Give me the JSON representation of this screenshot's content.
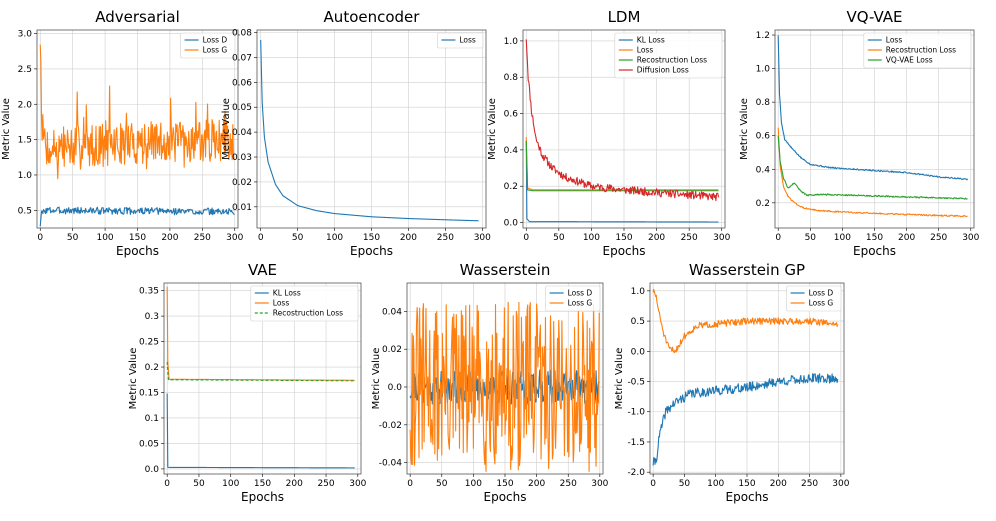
{
  "colors": {
    "c_blue": "#1f77b4",
    "c_orange": "#ff7f0e",
    "c_green": "#2ca02c",
    "c_red": "#d62728",
    "grid": "#cfcfcf",
    "frame": "#555555"
  },
  "chart_data": [
    {
      "type": "line",
      "title": "Adversarial",
      "xlabel": "Epochs",
      "ylabel": "Metric Value",
      "xlim": [
        -5,
        305
      ],
      "ylim": [
        0.25,
        3.05
      ],
      "xticks": [
        0,
        50,
        100,
        150,
        200,
        250,
        300
      ],
      "yticks": [
        0.5,
        1.0,
        1.5,
        2.0,
        2.5,
        3.0
      ],
      "grid": true,
      "legend": "top-right",
      "series": [
        {
          "name": "Loss D",
          "color": "c_blue",
          "gen": "noisy",
          "p": {
            "points": [
              [
                0,
                0.3
              ],
              [
                2,
                0.45
              ],
              [
                8,
                0.5
              ],
              [
                300,
                0.48
              ]
            ],
            "amp": 0.05,
            "n": 300,
            "seed": 3
          }
        },
        {
          "name": "Loss G",
          "color": "c_orange",
          "gen": "noisy",
          "p": {
            "points": [
              [
                0,
                3.0
              ],
              [
                3,
                1.6
              ],
              [
                10,
                1.4
              ],
              [
                300,
                1.5
              ]
            ],
            "amp": 0.3,
            "spikes": 0.09,
            "spikeAmp": 0.55,
            "n": 300,
            "seed": 7
          }
        }
      ]
    },
    {
      "type": "line",
      "title": "Autoencoder",
      "xlabel": "Epochs",
      "ylabel": "Metric Value",
      "xlim": [
        -5,
        305
      ],
      "ylim": [
        0.0015,
        0.081
      ],
      "xticks": [
        0,
        50,
        100,
        150,
        200,
        250,
        300
      ],
      "yticks": [
        0.01,
        0.02,
        0.03,
        0.04,
        0.05,
        0.06,
        0.07,
        0.08
      ],
      "grid": true,
      "legend": "top-right",
      "series": [
        {
          "name": "Loss",
          "color": "c_blue",
          "gen": "smooth",
          "p": {
            "points": [
              [
                0,
                0.077
              ],
              [
                2,
                0.052
              ],
              [
                5,
                0.038
              ],
              [
                10,
                0.028
              ],
              [
                20,
                0.019
              ],
              [
                30,
                0.0145
              ],
              [
                50,
                0.0105
              ],
              [
                75,
                0.0085
              ],
              [
                100,
                0.0073
              ],
              [
                150,
                0.006
              ],
              [
                200,
                0.0053
              ],
              [
                250,
                0.0048
              ],
              [
                295,
                0.0044
              ]
            ]
          }
        }
      ]
    },
    {
      "type": "line",
      "title": "LDM",
      "xlabel": "Epochs",
      "ylabel": "Metric Value",
      "xlim": [
        -5,
        305
      ],
      "ylim": [
        -0.03,
        1.06
      ],
      "xticks": [
        0,
        50,
        100,
        150,
        200,
        250,
        300
      ],
      "yticks": [
        0.0,
        0.2,
        0.4,
        0.6,
        0.8,
        1.0
      ],
      "grid": true,
      "legend": "top-right",
      "series": [
        {
          "name": "KL Loss",
          "color": "c_blue",
          "gen": "smooth",
          "p": {
            "points": [
              [
                0,
                0.45
              ],
              [
                1,
                0.02
              ],
              [
                5,
                0.005
              ],
              [
                295,
                0.003
              ]
            ]
          }
        },
        {
          "name": "Loss",
          "color": "c_orange",
          "gen": "smooth",
          "p": {
            "points": [
              [
                0,
                0.47
              ],
              [
                2,
                0.19
              ],
              [
                10,
                0.18
              ],
              [
                295,
                0.18
              ]
            ]
          }
        },
        {
          "name": "Recostruction Loss",
          "color": "c_green",
          "gen": "smooth",
          "p": {
            "points": [
              [
                0,
                0.45
              ],
              [
                2,
                0.18
              ],
              [
                10,
                0.175
              ],
              [
                295,
                0.175
              ]
            ]
          }
        },
        {
          "name": "Diffusion Loss",
          "color": "c_red",
          "gen": "noisy",
          "p": {
            "points": [
              [
                0,
                1.02
              ],
              [
                3,
                0.8
              ],
              [
                8,
                0.62
              ],
              [
                15,
                0.46
              ],
              [
                25,
                0.37
              ],
              [
                40,
                0.3
              ],
              [
                60,
                0.25
              ],
              [
                100,
                0.2
              ],
              [
                150,
                0.18
              ],
              [
                200,
                0.165
              ],
              [
                295,
                0.14
              ]
            ],
            "amp": 0.022,
            "n": 296,
            "seed": 11
          }
        }
      ]
    },
    {
      "type": "line",
      "title": "VQ-VAE",
      "xlabel": "Epochs",
      "ylabel": "Metric Value",
      "xlim": [
        -5,
        305
      ],
      "ylim": [
        0.05,
        1.23
      ],
      "xticks": [
        0,
        50,
        100,
        150,
        200,
        250,
        300
      ],
      "yticks": [
        0.2,
        0.4,
        0.6,
        0.8,
        1.0,
        1.2
      ],
      "grid": true,
      "legend": "top-right",
      "series": [
        {
          "name": "Loss",
          "color": "c_blue",
          "gen": "noisy",
          "p": {
            "points": [
              [
                0,
                1.2
              ],
              [
                2,
                0.85
              ],
              [
                5,
                0.68
              ],
              [
                10,
                0.58
              ],
              [
                20,
                0.53
              ],
              [
                35,
                0.47
              ],
              [
                50,
                0.43
              ],
              [
                80,
                0.41
              ],
              [
                120,
                0.4
              ],
              [
                200,
                0.38
              ],
              [
                250,
                0.355
              ],
              [
                295,
                0.34
              ]
            ],
            "amp": 0.004,
            "n": 296,
            "seed": 5
          }
        },
        {
          "name": "Recostruction Loss",
          "color": "c_orange",
          "gen": "noisy",
          "p": {
            "points": [
              [
                0,
                0.65
              ],
              [
                3,
                0.42
              ],
              [
                8,
                0.3
              ],
              [
                15,
                0.24
              ],
              [
                25,
                0.2
              ],
              [
                40,
                0.17
              ],
              [
                60,
                0.155
              ],
              [
                100,
                0.145
              ],
              [
                200,
                0.13
              ],
              [
                295,
                0.12
              ]
            ],
            "amp": 0.004,
            "n": 296,
            "seed": 8
          }
        },
        {
          "name": "VQ-VAE Loss",
          "color": "c_green",
          "gen": "noisy",
          "p": {
            "points": [
              [
                0,
                0.6
              ],
              [
                3,
                0.45
              ],
              [
                8,
                0.35
              ],
              [
                15,
                0.29
              ],
              [
                20,
                0.3
              ],
              [
                25,
                0.32
              ],
              [
                35,
                0.27
              ],
              [
                45,
                0.245
              ],
              [
                70,
                0.25
              ],
              [
                120,
                0.245
              ],
              [
                200,
                0.235
              ],
              [
                295,
                0.225
              ]
            ],
            "amp": 0.004,
            "n": 296,
            "seed": 9
          }
        }
      ]
    },
    {
      "type": "line",
      "title": "VAE",
      "xlabel": "Epochs",
      "ylabel": "Metric Value",
      "xlim": [
        -5,
        305
      ],
      "ylim": [
        -0.01,
        0.365
      ],
      "xticks": [
        0,
        50,
        100,
        150,
        200,
        250,
        300
      ],
      "yticks": [
        0.0,
        0.05,
        0.1,
        0.15,
        0.2,
        0.25,
        0.3,
        0.35
      ],
      "grid": true,
      "legend": "top-right",
      "series": [
        {
          "name": "KL Loss",
          "color": "c_blue",
          "gen": "smooth",
          "p": {
            "points": [
              [
                0,
                0.148
              ],
              [
                1,
                0.003
              ],
              [
                295,
                0.002
              ]
            ]
          }
        },
        {
          "name": "Loss",
          "color": "c_orange",
          "gen": "smooth",
          "p": {
            "points": [
              [
                0,
                0.358
              ],
              [
                1,
                0.21
              ],
              [
                3,
                0.176
              ],
              [
                295,
                0.174
              ]
            ]
          }
        },
        {
          "name": "Recostruction Loss",
          "color": "c_green",
          "gen": "smooth",
          "dash": true,
          "p": {
            "points": [
              [
                0,
                0.21
              ],
              [
                2,
                0.175
              ],
              [
                295,
                0.173
              ]
            ]
          }
        }
      ]
    },
    {
      "type": "line",
      "title": "Wasserstein",
      "xlabel": "Epochs",
      "ylabel": "Metric Value",
      "xlim": [
        -5,
        305
      ],
      "ylim": [
        -0.046,
        0.055
      ],
      "xticks": [
        0,
        50,
        100,
        150,
        200,
        250,
        300
      ],
      "yticks": [
        -0.04,
        -0.02,
        0.0,
        0.02,
        0.04
      ],
      "grid": true,
      "legend": "top-right",
      "series": [
        {
          "name": "Loss D",
          "color": "c_blue",
          "gen": "noisy",
          "p": {
            "points": [
              [
                0,
                0.0
              ],
              [
                300,
                0.0
              ]
            ],
            "amp": 0.009,
            "n": 300,
            "seed": 21
          }
        },
        {
          "name": "Loss G",
          "color": "c_orange",
          "gen": "noisy",
          "p": {
            "points": [
              [
                0,
                0.0
              ],
              [
                300,
                0.0
              ]
            ],
            "amp": 0.045,
            "n": 300,
            "seed": 31
          }
        }
      ]
    },
    {
      "type": "line",
      "title": "Wasserstein GP",
      "xlabel": "Epochs",
      "ylabel": "Metric Value",
      "xlim": [
        -5,
        305
      ],
      "ylim": [
        -2.03,
        1.13
      ],
      "xticks": [
        0,
        50,
        100,
        150,
        200,
        250,
        300
      ],
      "yticks": [
        -2.0,
        -1.5,
        -1.0,
        -0.5,
        0.0,
        0.5,
        1.0
      ],
      "grid": true,
      "legend": "top-right",
      "series": [
        {
          "name": "Loss D",
          "color": "c_blue",
          "gen": "noisy",
          "p": {
            "points": [
              [
                0,
                -1.85
              ],
              [
                5,
                -1.8
              ],
              [
                10,
                -1.4
              ],
              [
                20,
                -1.0
              ],
              [
                35,
                -0.85
              ],
              [
                60,
                -0.7
              ],
              [
                100,
                -0.65
              ],
              [
                150,
                -0.6
              ],
              [
                200,
                -0.5
              ],
              [
                250,
                -0.45
              ],
              [
                295,
                -0.45
              ]
            ],
            "amp": 0.08,
            "n": 296,
            "seed": 41
          }
        },
        {
          "name": "Loss G",
          "color": "c_orange",
          "gen": "noisy",
          "p": {
            "points": [
              [
                0,
                1.0
              ],
              [
                5,
                0.9
              ],
              [
                10,
                0.6
              ],
              [
                18,
                0.25
              ],
              [
                25,
                0.05
              ],
              [
                35,
                0.0
              ],
              [
                50,
                0.25
              ],
              [
                70,
                0.42
              ],
              [
                100,
                0.45
              ],
              [
                150,
                0.5
              ],
              [
                200,
                0.5
              ],
              [
                250,
                0.5
              ],
              [
                295,
                0.45
              ]
            ],
            "amp": 0.055,
            "n": 296,
            "seed": 51
          }
        }
      ]
    }
  ]
}
